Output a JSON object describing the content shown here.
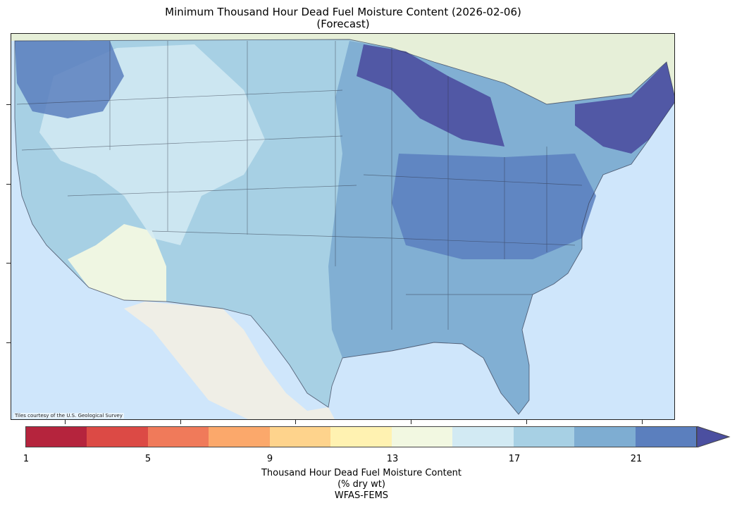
{
  "title": {
    "line1": "Minimum Thousand Hour Dead Fuel Moisture Content (2026-02-06)",
    "line2": "(Forecast)"
  },
  "map": {
    "attribution": "Tiles courtesy of the U.S. Geological Survey",
    "region": "Contiguous United States",
    "basemap_colors": {
      "ocean": "#cfe6fb",
      "land": "#eef0e8",
      "canada_land": "#e6efd8",
      "mexico_land": "#efeee6"
    }
  },
  "colorbar": {
    "label_line1": "Thousand Hour Dead Fuel Moisture Content",
    "label_line2": "(% dry wt)",
    "label_line3": "WFAS-FEMS",
    "ticks": [
      "1",
      "5",
      "9",
      "13",
      "17",
      "21"
    ],
    "extend": "max",
    "colors": [
      "#b5243d",
      "#dc4a45",
      "#f07a5a",
      "#fba86b",
      "#fed38c",
      "#fff2b1",
      "#f2f8e1",
      "#d2eaf3",
      "#a7d0e4",
      "#7eadd2",
      "#5b7fbe"
    ],
    "over_color": "#4b4fa0"
  }
}
